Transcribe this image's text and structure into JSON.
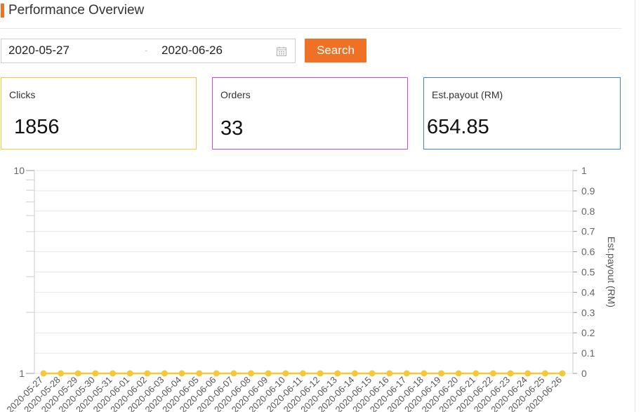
{
  "header": {
    "title": "Performance Overview"
  },
  "filter": {
    "start_date": "2020-05-27",
    "separator": "-",
    "end_date": "2020-06-26",
    "calendar_icon": "calendar-icon",
    "search_label": "Search"
  },
  "stats": {
    "clicks": {
      "label": "Clicks",
      "value": "1856"
    },
    "orders": {
      "label": "Orders",
      "value": "33"
    },
    "payout": {
      "label": "Est.payout (RM)",
      "value": "654.85"
    }
  },
  "colors": {
    "accent": "#f07026",
    "clicks": "#f3c93a",
    "orders": "#c354c8",
    "payout": "#3a88c8",
    "series": "#f3c93a"
  },
  "chart_data": {
    "type": "line",
    "x": [
      "2020-05-27",
      "2020-05-28",
      "2020-05-29",
      "2020-05-30",
      "2020-05-31",
      "2020-06-01",
      "2020-06-02",
      "2020-06-03",
      "2020-06-04",
      "2020-06-05",
      "2020-06-06",
      "2020-06-07",
      "2020-06-08",
      "2020-06-09",
      "2020-06-10",
      "2020-06-11",
      "2020-06-12",
      "2020-06-13",
      "2020-06-14",
      "2020-06-15",
      "2020-06-16",
      "2020-06-17",
      "2020-06-18",
      "2020-06-19",
      "2020-06-20",
      "2020-06-21",
      "2020-06-22",
      "2020-06-23",
      "2020-06-24",
      "2020-06-25",
      "2020-06-26"
    ],
    "series": [
      {
        "axis": "right",
        "values": [
          0,
          0,
          0,
          0,
          0,
          0,
          0,
          0,
          0,
          0,
          0,
          0,
          0,
          0,
          0,
          0,
          0,
          0,
          0,
          0,
          0,
          0,
          0,
          0,
          0,
          0,
          0,
          0,
          0,
          0,
          0
        ]
      }
    ],
    "y_left": {
      "scale": "log",
      "range": [
        1,
        10
      ],
      "ticks": [
        "1",
        "10"
      ]
    },
    "y_right": {
      "label": "Est.payout (RM)",
      "range": [
        0,
        1
      ],
      "ticks": [
        "0",
        "0.1",
        "0.2",
        "0.3",
        "0.4",
        "0.5",
        "0.6",
        "0.7",
        "0.8",
        "0.9",
        "1"
      ]
    },
    "grid": true,
    "legend": "none"
  }
}
